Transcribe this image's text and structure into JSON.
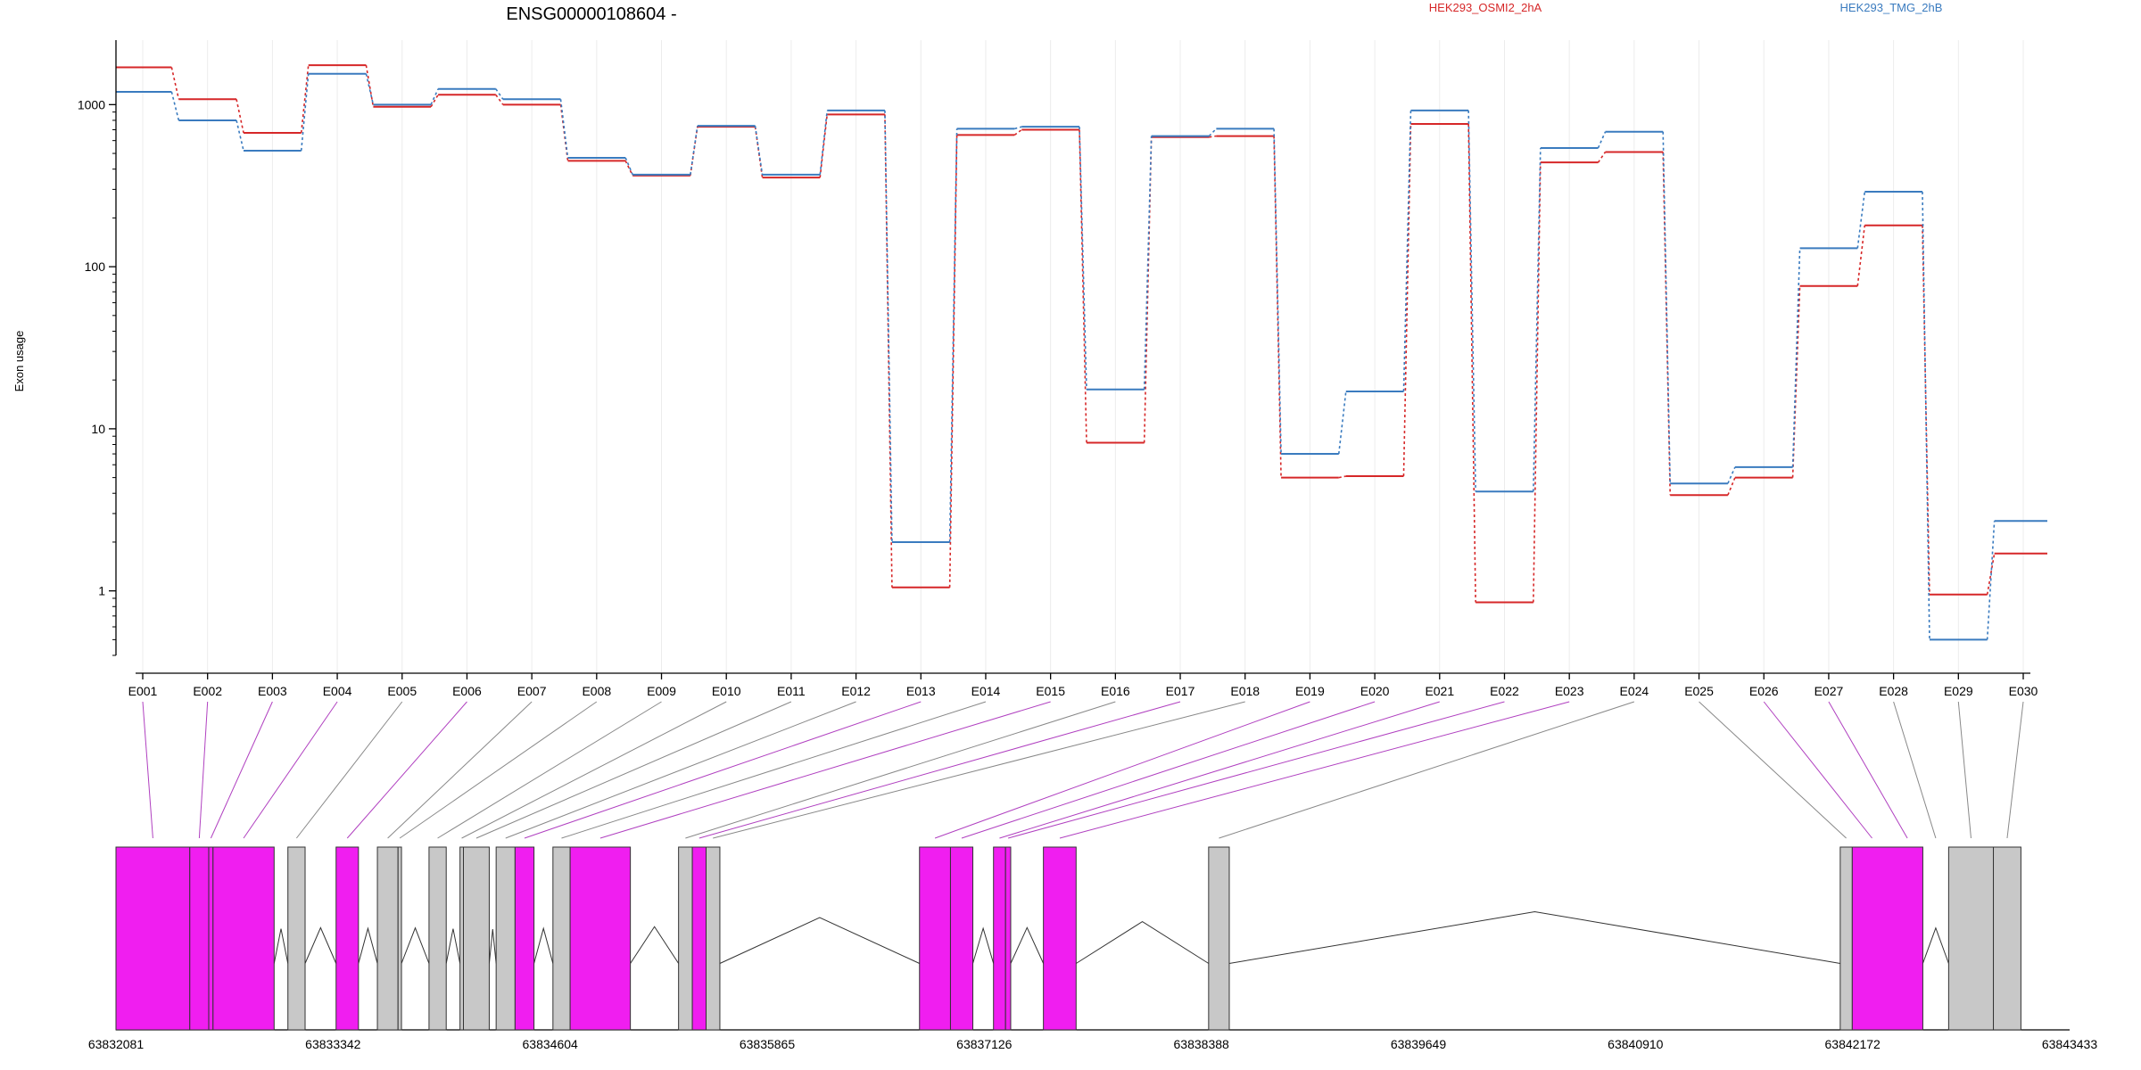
{
  "chart_data": {
    "type": "line",
    "title": "ENSG00000108604 -",
    "ylabel": "Exon usage",
    "yscale": "log",
    "ylim": [
      0.4,
      2500
    ],
    "yticks": [
      1,
      10,
      100,
      1000
    ],
    "grid": false,
    "legend_position": "top",
    "categories": [
      "E001",
      "E002",
      "E003",
      "E004",
      "E005",
      "E006",
      "E007",
      "E008",
      "E009",
      "E010",
      "E011",
      "E012",
      "E013",
      "E014",
      "E015",
      "E016",
      "E017",
      "E018",
      "E019",
      "E020",
      "E021",
      "E022",
      "E023",
      "E024",
      "E025",
      "E026",
      "E027",
      "E028",
      "E029",
      "E030"
    ],
    "series": [
      {
        "name": "HEK293_OSMI2_2hA",
        "color": "#d62728",
        "values": [
          1700,
          1080,
          670,
          1750,
          970,
          1150,
          1000,
          450,
          365,
          730,
          355,
          870,
          1.05,
          650,
          700,
          8.2,
          630,
          640,
          5,
          5.1,
          760,
          0.85,
          440,
          510,
          3.9,
          5,
          76,
          180,
          0.95,
          1.7
        ]
      },
      {
        "name": "HEK293_TMG_2hB",
        "color": "#3a7bbf",
        "values": [
          1200,
          800,
          520,
          1550,
          1000,
          1250,
          1080,
          470,
          370,
          740,
          370,
          920,
          2,
          710,
          730,
          17.5,
          640,
          710,
          7,
          17,
          920,
          4.1,
          540,
          680,
          4.6,
          5.8,
          130,
          290,
          0.5,
          2.7
        ]
      }
    ],
    "genome_axis": {
      "labels": [
        "63832081",
        "63833342",
        "63834604",
        "63835865",
        "63837126",
        "63838388",
        "63839649",
        "63840910",
        "63842172",
        "63843433"
      ],
      "start": 63832081,
      "end": 63843433
    },
    "gene_model": {
      "exons": [
        {
          "start": 63832081,
          "end": 63832510,
          "highlight": true
        },
        {
          "start": 63832510,
          "end": 63832620,
          "highlight": true
        },
        {
          "start": 63832620,
          "end": 63832645,
          "highlight": true
        },
        {
          "start": 63832645,
          "end": 63833000,
          "highlight": true
        },
        {
          "start": 63833080,
          "end": 63833180,
          "highlight": false
        },
        {
          "start": 63833360,
          "end": 63833490,
          "highlight": true
        },
        {
          "start": 63833600,
          "end": 63833720,
          "highlight": false
        },
        {
          "start": 63833720,
          "end": 63833740,
          "highlight": false
        },
        {
          "start": 63833900,
          "end": 63834000,
          "highlight": false
        },
        {
          "start": 63834080,
          "end": 63834100,
          "highlight": false
        },
        {
          "start": 63834100,
          "end": 63834250,
          "highlight": false
        },
        {
          "start": 63834290,
          "end": 63834400,
          "highlight": false
        },
        {
          "start": 63834400,
          "end": 63834510,
          "highlight": true
        },
        {
          "start": 63834620,
          "end": 63834720,
          "highlight": false
        },
        {
          "start": 63834720,
          "end": 63835070,
          "highlight": true
        },
        {
          "start": 63835350,
          "end": 63835430,
          "highlight": false
        },
        {
          "start": 63835430,
          "end": 63835510,
          "highlight": true
        },
        {
          "start": 63835510,
          "end": 63835590,
          "highlight": false
        },
        {
          "start": 63836750,
          "end": 63836930,
          "highlight": true
        },
        {
          "start": 63836930,
          "end": 63837060,
          "highlight": true
        },
        {
          "start": 63837180,
          "end": 63837250,
          "highlight": true
        },
        {
          "start": 63837250,
          "end": 63837280,
          "highlight": true
        },
        {
          "start": 63837470,
          "end": 63837660,
          "highlight": true
        },
        {
          "start": 63838430,
          "end": 63838550,
          "highlight": false
        },
        {
          "start": 63842100,
          "end": 63842170,
          "highlight": false
        },
        {
          "start": 63842170,
          "end": 63842580,
          "highlight": true
        },
        {
          "start": 63842730,
          "end": 63842990,
          "highlight": false
        },
        {
          "start": 63842990,
          "end": 63843150,
          "highlight": false
        }
      ],
      "exon_bin_starts": [
        63832081,
        63832510,
        63832620,
        63832645,
        63833080,
        63833360,
        63833600,
        63833720,
        63833900,
        63834080,
        63834100,
        63834290,
        63834400,
        63834620,
        63834720,
        63835350,
        63835430,
        63835510,
        63836750,
        63836930,
        63837180,
        63837250,
        63837470,
        63838430,
        63842100,
        63842170,
        63842400,
        63842580,
        63842730,
        63842990
      ],
      "exon_bin_ends": [
        63832510,
        63832620,
        63832645,
        63833000,
        63833180,
        63833490,
        63833720,
        63833740,
        63834000,
        63834100,
        63834250,
        63834400,
        63834510,
        63834720,
        63835070,
        63835430,
        63835510,
        63835590,
        63836930,
        63837060,
        63837250,
        63837280,
        63837660,
        63838550,
        63842170,
        63842400,
        63842580,
        63842730,
        63842990,
        63843150
      ]
    }
  }
}
